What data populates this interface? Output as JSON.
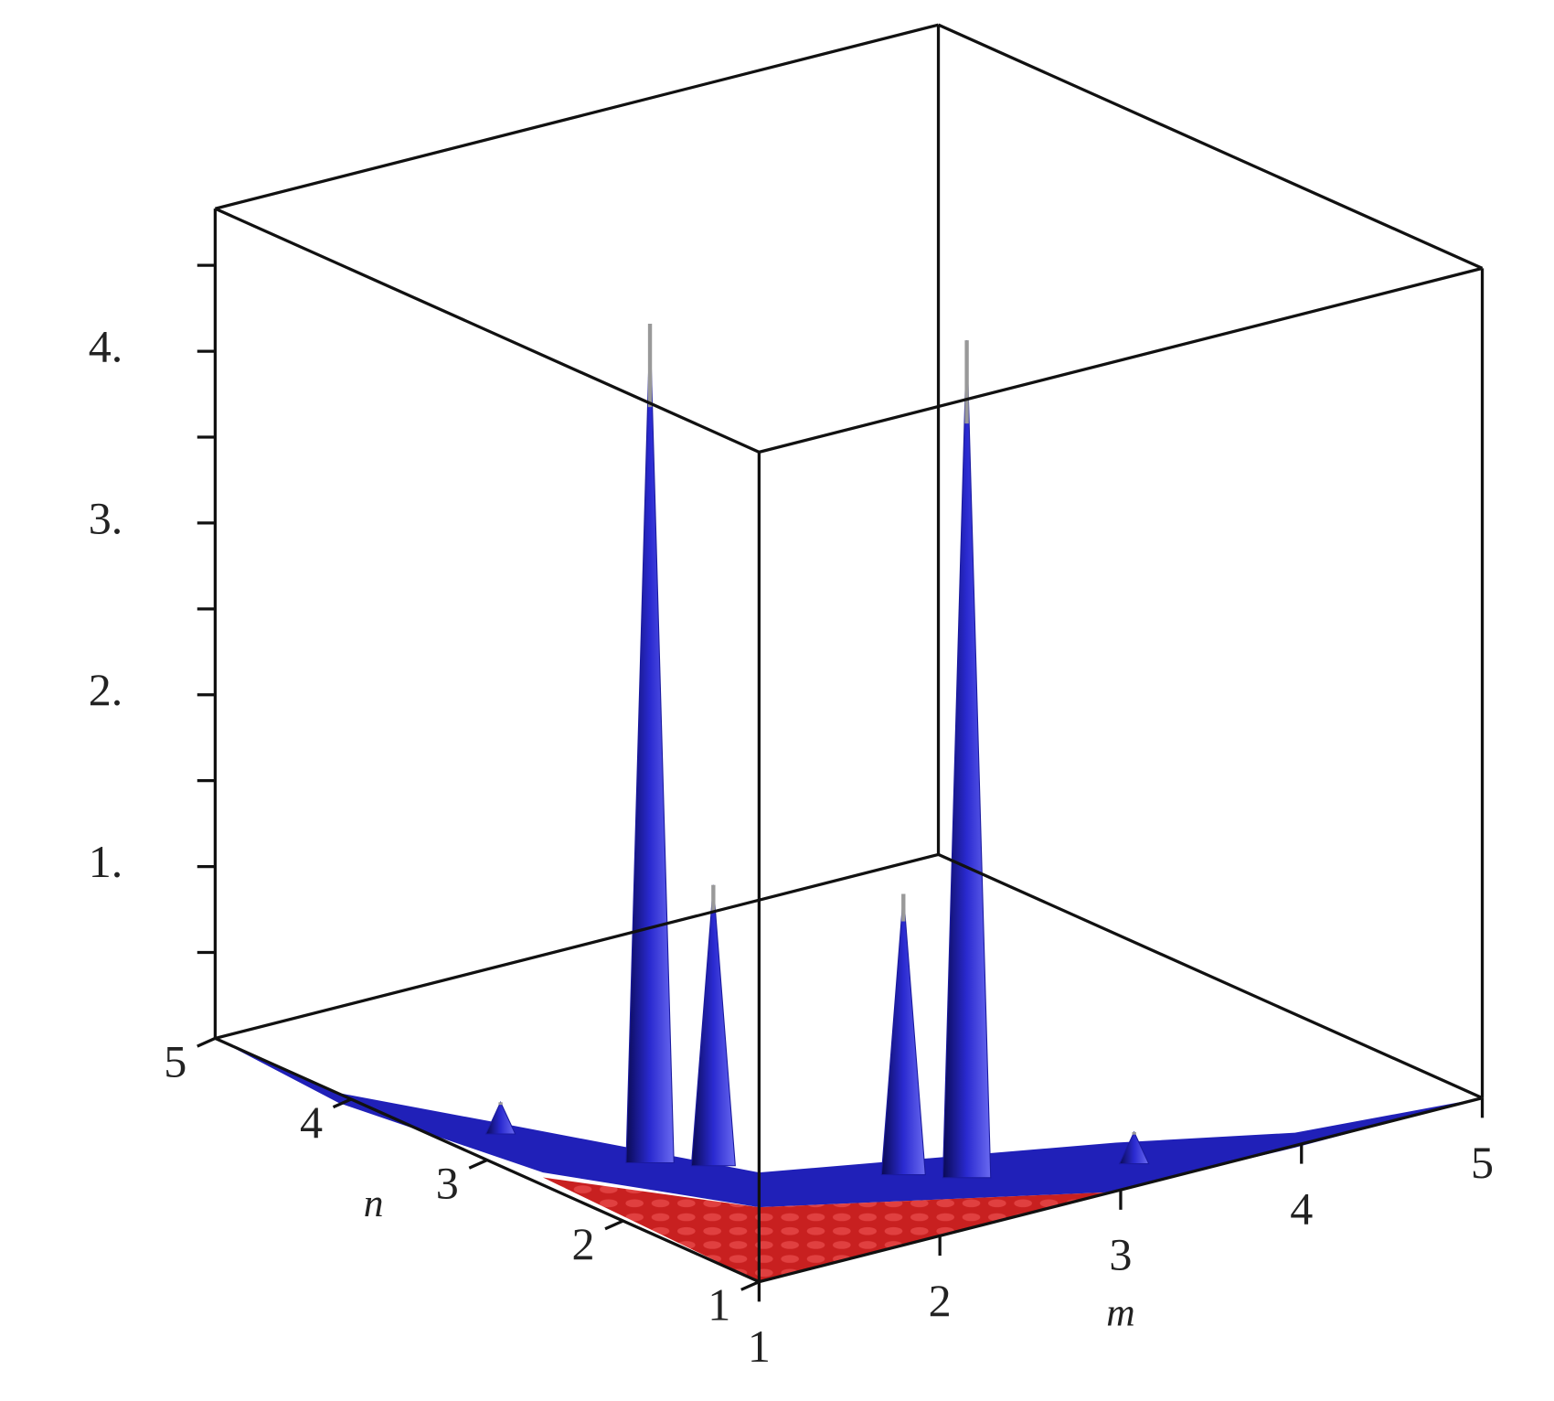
{
  "chart_data": {
    "type": "surface3d",
    "xlabel": "m",
    "ylabel": "n",
    "xlim": [
      1,
      5
    ],
    "ylim": [
      1,
      5
    ],
    "zlim": [
      0,
      4.83
    ],
    "xticks": [
      1,
      2,
      3,
      4,
      5
    ],
    "yticks": [
      1,
      2,
      3,
      4,
      5
    ],
    "zticks": [
      {
        "value": 1,
        "label": "1."
      },
      {
        "value": 2,
        "label": "2."
      },
      {
        "value": 3,
        "label": "3."
      },
      {
        "value": 4,
        "label": "4."
      }
    ],
    "zminor_ticks": [
      0.5,
      1.5,
      2.5,
      3.5,
      4.5
    ],
    "peaks": {
      "x": [
        1.6,
        2.6,
        1.8,
        2.4,
        1.3,
        3.3
      ],
      "y": [
        2.6,
        1.6,
        2.4,
        1.8,
        3.3,
        1.3
      ],
      "z": [
        4.85,
        4.84,
        1.6,
        1.6,
        0.15,
        0.15
      ],
      "color": "#1a1aa0"
    }
  }
}
